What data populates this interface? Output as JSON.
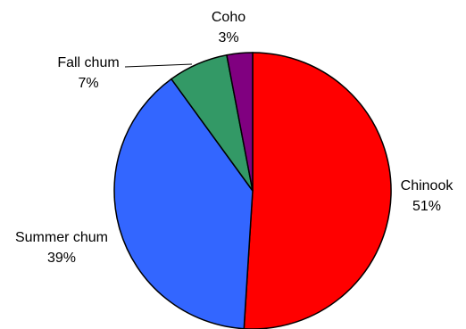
{
  "chart_data": {
    "type": "pie",
    "start_angle": "12 o'clock",
    "direction": "clockwise",
    "slices": [
      {
        "label": "Chinook",
        "value": 51,
        "pct_label": "51%",
        "color": "#ff0000"
      },
      {
        "label": "Summer chum",
        "value": 39,
        "pct_label": "39%",
        "color": "#3366ff"
      },
      {
        "label": "Fall chum",
        "value": 7,
        "pct_label": "7%",
        "color": "#339966"
      },
      {
        "label": "Coho",
        "value": 3,
        "pct_label": "3%",
        "color": "#800080"
      }
    ]
  }
}
